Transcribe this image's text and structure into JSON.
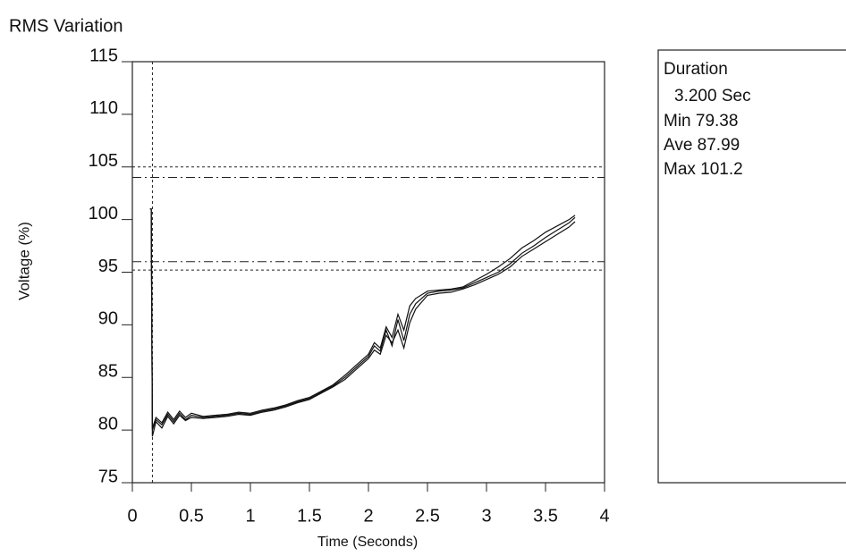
{
  "chart_data": {
    "type": "line",
    "title": "RMS Variation",
    "y_label": "Voltage (%)",
    "x_label": "Time (Seconds)",
    "xlim": [
      0,
      4
    ],
    "xticks": [
      0,
      0.5,
      1,
      1.5,
      2,
      2.5,
      3,
      3.5,
      4
    ],
    "ylim": [
      75,
      115
    ],
    "yticks": [
      75,
      80,
      85,
      90,
      95,
      100,
      105,
      110,
      115
    ],
    "ref_lines": [
      {
        "value": 105,
        "style": "dotted"
      },
      {
        "value": 104,
        "style": "dashdot"
      },
      {
        "value": 96,
        "style": "dashdot"
      },
      {
        "value": 95.2,
        "style": "dotted"
      }
    ],
    "vlines": [
      0.17
    ],
    "x": [
      0.15,
      0.16,
      0.17,
      0.2,
      0.25,
      0.3,
      0.35,
      0.4,
      0.45,
      0.5,
      0.6,
      0.7,
      0.8,
      0.9,
      1.0,
      1.1,
      1.2,
      1.3,
      1.4,
      1.5,
      1.6,
      1.7,
      1.8,
      1.9,
      2.0,
      2.05,
      2.1,
      2.15,
      2.2,
      2.25,
      2.3,
      2.35,
      2.4,
      2.5,
      2.6,
      2.7,
      2.8,
      2.9,
      3.0,
      3.1,
      3.2,
      3.3,
      3.4,
      3.5,
      3.6,
      3.7,
      3.75
    ],
    "series": [
      {
        "color": "#111111",
        "values": [
          101,
          101,
          80,
          81,
          80.5,
          81.5,
          80.8,
          81.6,
          81,
          81.4,
          81.2,
          81.3,
          81.4,
          81.6,
          81.5,
          81.8,
          82,
          82.3,
          82.7,
          83,
          83.6,
          84.2,
          85,
          86,
          87,
          88,
          87.5,
          89.5,
          88,
          90.5,
          88.5,
          91,
          92,
          93,
          93.2,
          93.3,
          93.5,
          94,
          94.5,
          95,
          95.8,
          96.8,
          97.5,
          98.3,
          99,
          99.7,
          100.2
        ]
      },
      {
        "color": "#111111",
        "values": [
          101,
          101,
          79.4,
          80.8,
          80.2,
          81.3,
          80.6,
          81.4,
          80.9,
          81.2,
          81.1,
          81.2,
          81.3,
          81.5,
          81.4,
          81.7,
          81.9,
          82.2,
          82.6,
          82.9,
          83.5,
          84.1,
          84.8,
          85.8,
          86.8,
          87.6,
          87.2,
          89,
          88.3,
          89.5,
          87.8,
          90.2,
          91.5,
          92.8,
          93,
          93.1,
          93.4,
          93.8,
          94.3,
          94.8,
          95.5,
          96.5,
          97.2,
          97.9,
          98.6,
          99.3,
          99.8
        ]
      },
      {
        "color": "#111111",
        "values": [
          101,
          101,
          80.2,
          81.2,
          80.7,
          81.7,
          81,
          81.8,
          81.2,
          81.6,
          81.3,
          81.4,
          81.5,
          81.7,
          81.6,
          81.9,
          82.1,
          82.4,
          82.8,
          83.1,
          83.7,
          84.3,
          85.2,
          86.2,
          87.2,
          88.3,
          87.8,
          89.8,
          88.8,
          91,
          89.5,
          91.8,
          92.5,
          93.2,
          93.3,
          93.4,
          93.6,
          94.2,
          94.8,
          95.5,
          96.3,
          97.3,
          98,
          98.8,
          99.4,
          100,
          100.4
        ]
      }
    ],
    "info": [
      "Duration",
      "3.200 Sec",
      "Min 79.38",
      "Ave 87.99",
      "Max 101.2"
    ]
  }
}
